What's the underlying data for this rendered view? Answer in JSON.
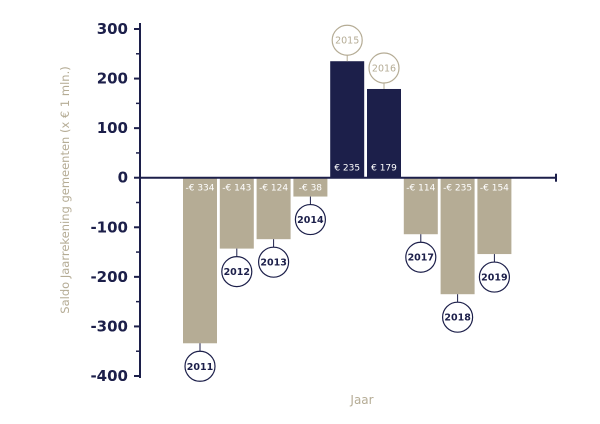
{
  "chart_data": {
    "type": "bar",
    "categories": [
      "2011",
      "2012",
      "2013",
      "2014",
      "2015",
      "2016",
      "2017",
      "2018",
      "2019"
    ],
    "values": [
      -334,
      -143,
      -124,
      -38,
      235,
      179,
      -114,
      -235,
      -154
    ],
    "data_labels": [
      "-€ 334",
      "-€ 143",
      "-€ 124",
      "-€ 38",
      "€ 235",
      "€ 179",
      "-€ 114",
      "-€ 235",
      "-€ 154"
    ],
    "ylabel": "Saldo Jaarrekening gemeenten (x € 1 mln.)",
    "xlabel": "Jaar",
    "ylim": [
      -400,
      300
    ],
    "yticks": [
      300,
      200,
      100,
      0,
      -100,
      -200,
      -300,
      -400
    ],
    "ytick_labels": [
      "300",
      "200",
      "100",
      "0",
      "-100",
      "-200",
      "-300",
      "-400"
    ],
    "colors": {
      "positive": "#1c1f4a",
      "negative": "#b5ac95",
      "axis": "#1c1f4a",
      "label": "#b5ac95"
    }
  }
}
